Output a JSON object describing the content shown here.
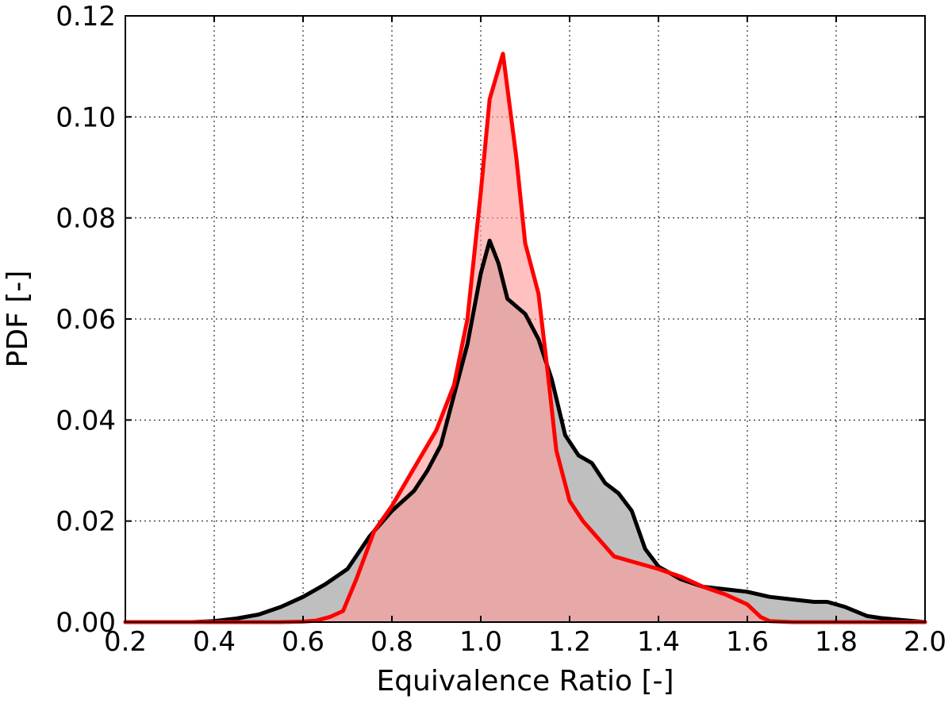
{
  "chart_data": {
    "type": "area",
    "title": "",
    "xlabel": "Equivalence Ratio [-]",
    "ylabel": "PDF [-]",
    "xlim": [
      0.2,
      2.0
    ],
    "ylim": [
      0.0,
      0.12
    ],
    "grid": true,
    "xticks": [
      0.2,
      0.4,
      0.6,
      0.8,
      1.0,
      1.2,
      1.4,
      1.6,
      1.8,
      2.0
    ],
    "xtick_labels": [
      "0.2",
      "0.4",
      "0.6",
      "0.8",
      "1.0",
      "1.2",
      "1.4",
      "1.6",
      "1.8",
      "2.0"
    ],
    "yticks": [
      0.0,
      0.02,
      0.04,
      0.06,
      0.08,
      0.1,
      0.12
    ],
    "ytick_labels": [
      "0.00",
      "0.02",
      "0.04",
      "0.06",
      "0.08",
      "0.10",
      "0.12"
    ],
    "series": [
      {
        "name": "black",
        "line_color": "#000000",
        "fill_color": "#bfbfbf",
        "x": [
          0.2,
          0.35,
          0.4,
          0.45,
          0.5,
          0.55,
          0.6,
          0.65,
          0.7,
          0.75,
          0.8,
          0.85,
          0.88,
          0.91,
          0.94,
          0.97,
          1.0,
          1.02,
          1.04,
          1.06,
          1.08,
          1.1,
          1.13,
          1.16,
          1.19,
          1.22,
          1.25,
          1.28,
          1.31,
          1.34,
          1.37,
          1.4,
          1.45,
          1.5,
          1.55,
          1.6,
          1.65,
          1.7,
          1.75,
          1.78,
          1.82,
          1.87,
          1.9,
          1.95,
          2.0
        ],
        "y": [
          0.0,
          0.0,
          0.0002,
          0.0007,
          0.0015,
          0.003,
          0.005,
          0.0075,
          0.0105,
          0.017,
          0.022,
          0.026,
          0.03,
          0.035,
          0.045,
          0.055,
          0.069,
          0.0755,
          0.071,
          0.064,
          0.0625,
          0.061,
          0.056,
          0.048,
          0.037,
          0.033,
          0.0315,
          0.0275,
          0.0255,
          0.022,
          0.0145,
          0.011,
          0.0085,
          0.007,
          0.0065,
          0.006,
          0.005,
          0.0045,
          0.004,
          0.004,
          0.003,
          0.0012,
          0.0008,
          0.0004,
          0.0
        ]
      },
      {
        "name": "red",
        "line_color": "#ff0000",
        "fill_color": "#ff9999",
        "x": [
          0.2,
          0.55,
          0.6,
          0.63,
          0.66,
          0.69,
          0.72,
          0.76,
          0.8,
          0.85,
          0.9,
          0.94,
          0.97,
          1.0,
          1.02,
          1.05,
          1.08,
          1.1,
          1.13,
          1.15,
          1.17,
          1.2,
          1.23,
          1.26,
          1.3,
          1.34,
          1.4,
          1.45,
          1.5,
          1.55,
          1.6,
          1.63,
          1.65,
          1.7,
          1.8,
          2.0
        ],
        "y": [
          0.0,
          0.0,
          0.0001,
          0.0003,
          0.001,
          0.0022,
          0.0085,
          0.018,
          0.023,
          0.0305,
          0.038,
          0.047,
          0.06,
          0.085,
          0.1035,
          0.1125,
          0.092,
          0.075,
          0.065,
          0.05,
          0.034,
          0.024,
          0.02,
          0.017,
          0.013,
          0.012,
          0.0105,
          0.009,
          0.007,
          0.0055,
          0.0035,
          0.001,
          0.0002,
          0.0,
          0.0,
          0.0
        ]
      }
    ]
  }
}
